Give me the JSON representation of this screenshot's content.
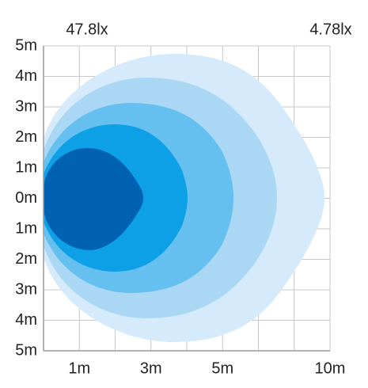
{
  "chart_data": {
    "type": "isolux",
    "labels": {
      "inner": "47.8lx",
      "outer": "4.78lx"
    },
    "y_labels": [
      "5m",
      "4m",
      "3m",
      "2m",
      "1m",
      "0m",
      "1m",
      "2m",
      "3m",
      "4m",
      "5m"
    ],
    "x_labels": [
      "1m",
      "3m",
      "5m",
      "10m"
    ]
  }
}
